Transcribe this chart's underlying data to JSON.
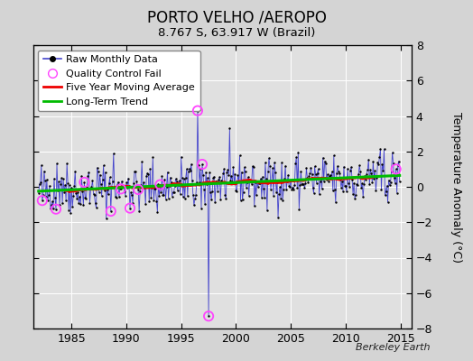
{
  "title": "PORTO VELHO /AEROPO",
  "subtitle": "8.767 S, 63.917 W (Brazil)",
  "ylabel": "Temperature Anomaly (°C)",
  "watermark": "Berkeley Earth",
  "xlim": [
    1981.5,
    2016.0
  ],
  "ylim": [
    -8,
    8
  ],
  "yticks": [
    -8,
    -6,
    -4,
    -2,
    0,
    2,
    4,
    6,
    8
  ],
  "xticks": [
    1985,
    1990,
    1995,
    2000,
    2005,
    2010,
    2015
  ],
  "bg_color": "#d4d4d4",
  "plot_bg_color": "#e0e0e0",
  "grid_color": "#ffffff",
  "raw_line_color": "#4444cc",
  "raw_dot_color": "#000000",
  "qc_fail_color": "#ff44ff",
  "moving_avg_color": "#ee0000",
  "trend_color": "#00bb00",
  "seed": 42,
  "start_year": 1982,
  "end_year": 2015,
  "noise_std": 0.65
}
